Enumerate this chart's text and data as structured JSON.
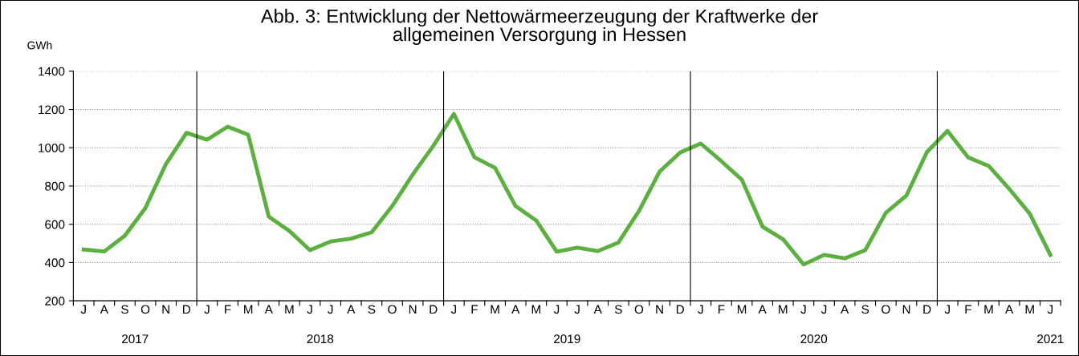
{
  "chart_data": {
    "type": "line",
    "title": "Abb. 3: Entwicklung der Nettowärmeerzeugung der Kraftwerke der\nallgemeinen Versorgung in Hessen",
    "ylabel": "GWh",
    "categories": [
      "J",
      "A",
      "S",
      "O",
      "N",
      "D",
      "J",
      "F",
      "M",
      "A",
      "M",
      "J",
      "J",
      "A",
      "S",
      "O",
      "N",
      "D",
      "J",
      "F",
      "M",
      "A",
      "M",
      "J",
      "J",
      "A",
      "S",
      "O",
      "N",
      "D",
      "J",
      "F",
      "M",
      "A",
      "M",
      "J",
      "J",
      "A",
      "S",
      "O",
      "N",
      "D",
      "J",
      "F",
      "M",
      "A",
      "M",
      "J"
    ],
    "series": [
      {
        "color": "#5cb040",
        "values": [
          468,
          458,
          540,
          685,
          915,
          1078,
          1042,
          1110,
          1068,
          640,
          565,
          465,
          510,
          525,
          558,
          695,
          860,
          1010,
          1177,
          950,
          895,
          695,
          620,
          457,
          478,
          460,
          505,
          670,
          875,
          975,
          1022,
          930,
          833,
          588,
          522,
          390,
          440,
          422,
          465,
          660,
          750,
          978,
          1088,
          950,
          905,
          785,
          655,
          440
        ]
      }
    ],
    "ylim": [
      200,
      1400
    ],
    "yticks": [
      200,
      400,
      600,
      800,
      1000,
      1200,
      1400
    ],
    "grid": "y",
    "annotations": [
      "2017",
      "2018",
      "2019",
      "2020",
      "2021"
    ],
    "marker": "none",
    "line_style": "solid",
    "legend": false
  }
}
